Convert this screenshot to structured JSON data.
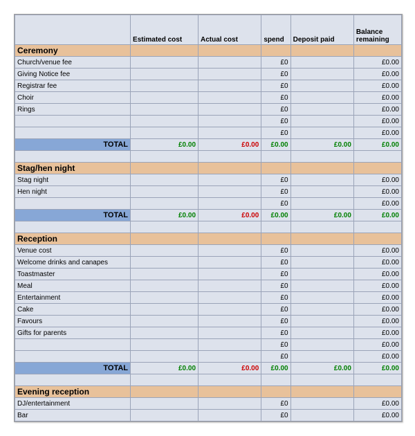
{
  "columns": {
    "item": "",
    "est": "Estimated cost",
    "act": "Actual cost",
    "spend": "spend",
    "dep": "Deposit paid",
    "bal": "Balance remaining"
  },
  "colors": {
    "header_bg": "#dde2ec",
    "cell_bg": "#dde2ec",
    "section_bg": "#e8c19a",
    "total_label_bg": "#87a7d6",
    "border": "#9aa3b8",
    "green": "#008000",
    "red": "#cc0000"
  },
  "total_label": "TOTAL",
  "zero_curr": "£0.00",
  "zero_short": "£0",
  "sections": [
    {
      "name": "Ceremony",
      "rows": [
        "Church/venue fee",
        "Giving Notice fee",
        "Registrar fee",
        "Choir",
        "Rings"
      ],
      "blanks_after": 2
    },
    {
      "name": "Stag/hen night",
      "rows": [
        "Stag night",
        "Hen night"
      ],
      "blanks_after": 1
    },
    {
      "name": "Reception",
      "rows": [
        "Venue cost",
        "Welcome drinks and canapes",
        "Toastmaster",
        "Meal",
        "Entertainment",
        "Cake",
        "Favours",
        "Gifts for parents"
      ],
      "blanks_after": 2
    },
    {
      "name": "Evening reception",
      "rows": [
        "DJ/entertainment",
        "Bar"
      ],
      "blanks_after": 0,
      "no_total": true
    }
  ]
}
